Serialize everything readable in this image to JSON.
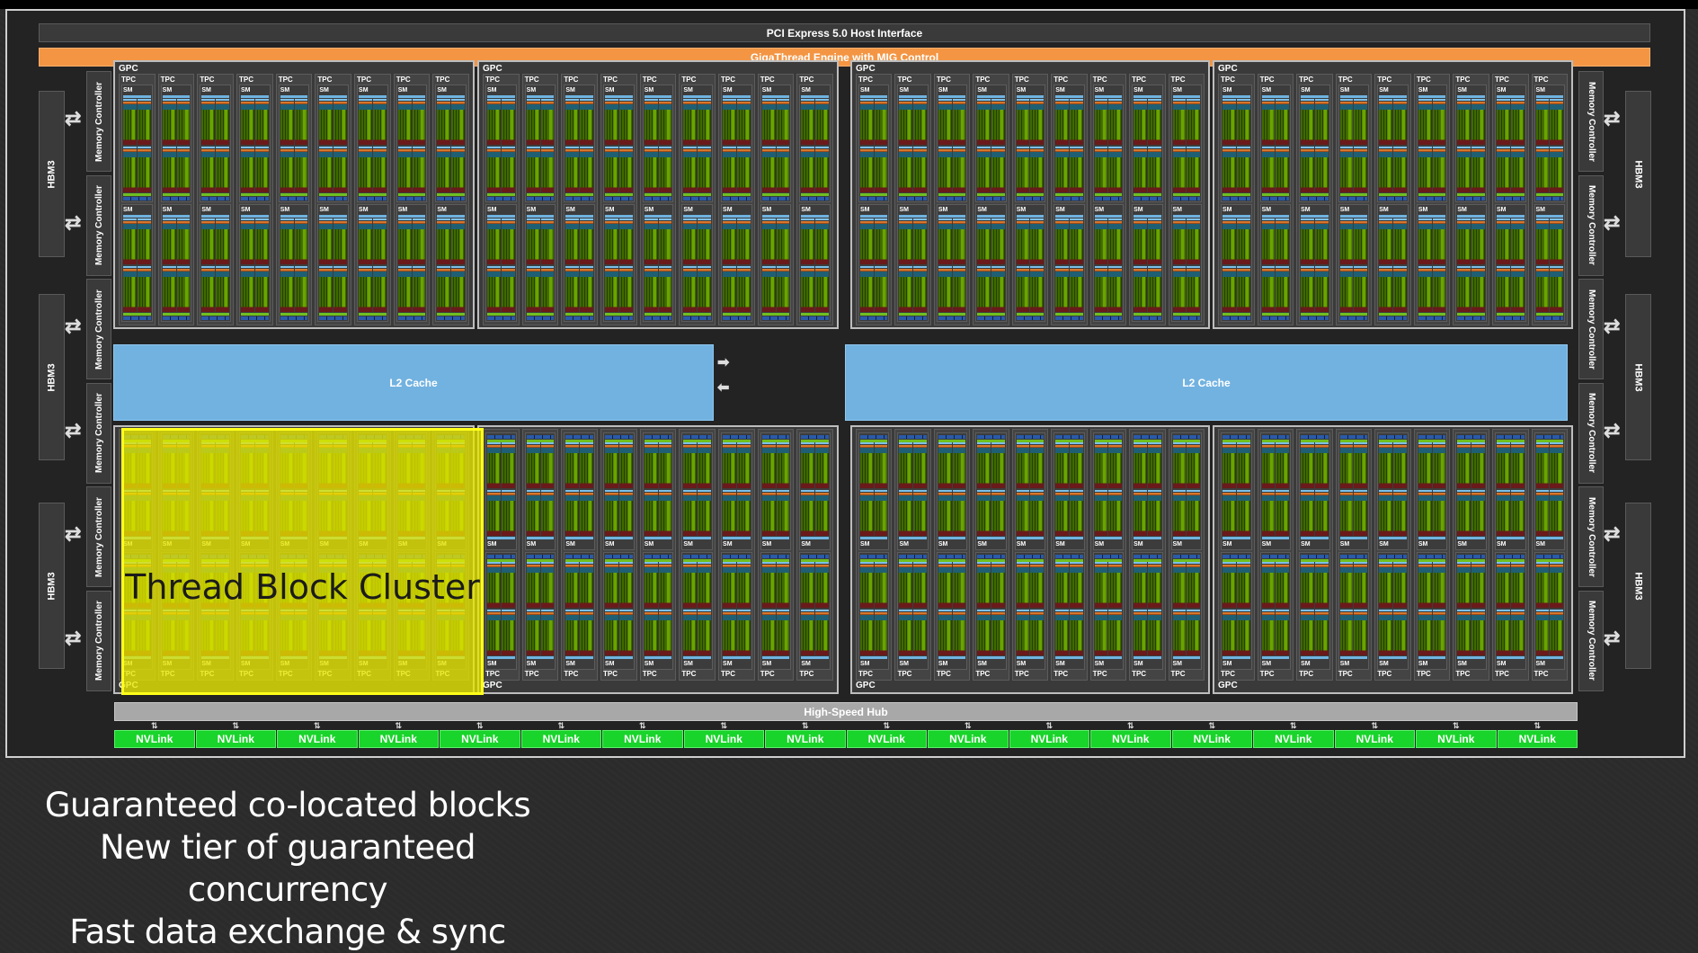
{
  "diagram": {
    "host_interface": "PCI Express 5.0 Host Interface",
    "gigathread": "GigaThread Engine with MIG Control",
    "hbm_label": "HBM3",
    "memory_controller_label": "Memory Controller",
    "gpc_label": "GPC",
    "tpc_label": "TPC",
    "sm_label": "SM",
    "l2_cache_left": "L2 Cache",
    "l2_cache_right": "L2 Cache",
    "high_speed_hub": "High-Speed Hub",
    "nvlink_label": "NVLink",
    "highlight_label": "Thread Block Cluster"
  },
  "colors": {
    "gigathread": "#f39543",
    "l2_cache": "#72b2e0",
    "nvlink": "#19d42a",
    "cluster_highlight": "#ffff1a"
  },
  "captions": [
    "Guaranteed co-located blocks",
    "New tier of guaranteed concurrency",
    "Fast data exchange & sync"
  ]
}
